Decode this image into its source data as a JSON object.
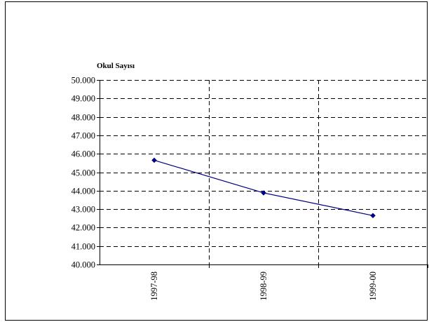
{
  "chart_data": {
    "type": "line",
    "title": "",
    "ylabel": "Okul Sayısı",
    "xlabel": "",
    "categories": [
      "1997-98",
      "1998-99",
      "1999-00"
    ],
    "series": [
      {
        "values": [
          45650,
          43880,
          42650
        ],
        "color": "#000080",
        "marker": "diamond"
      }
    ],
    "ylim": [
      40000,
      50000
    ],
    "ystep": 1000,
    "ytick_labels": [
      "40.000",
      "41.000",
      "42.000",
      "43.000",
      "44.000",
      "45.000",
      "46.000",
      "47.000",
      "48.000",
      "49.000",
      "50.000"
    ],
    "grid": true,
    "grid_style": "dashed",
    "legend": "none"
  }
}
